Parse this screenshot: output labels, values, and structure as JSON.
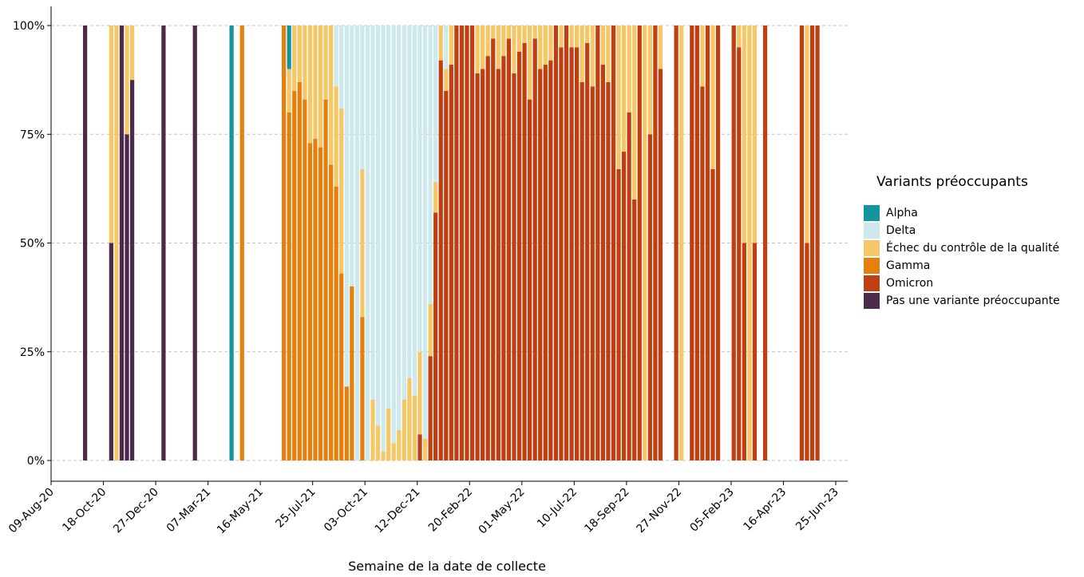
{
  "chart_data": {
    "type": "bar",
    "stacked": true,
    "xlabel": "Semaine de la date de collecte",
    "ylabel": "",
    "y_tick_labels": [
      "0%",
      "25%",
      "50%",
      "75%",
      "100%"
    ],
    "x_tick_labels": [
      "09-Aug-20",
      "18-Oct-20",
      "27-Dec-20",
      "07-Mar-21",
      "16-May-21",
      "25-Jul-21",
      "03-Oct-21",
      "12-Dec-21",
      "20-Feb-22",
      "01-May-22",
      "10-Jul-22",
      "18-Sep-22",
      "27-Nov-22",
      "05-Feb-23",
      "16-Apr-23",
      "25-Jun-23"
    ],
    "x_ticks": [
      "2020-08-09",
      "2020-10-18",
      "2020-12-27",
      "2021-03-07",
      "2021-05-16",
      "2021-07-25",
      "2021-10-03",
      "2021-12-12",
      "2022-02-20",
      "2022-05-01",
      "2022-07-10",
      "2022-09-18",
      "2022-11-27",
      "2023-02-05",
      "2023-04-16",
      "2023-06-25"
    ],
    "ylim": [
      0,
      1
    ],
    "grid": "horizontal-dashed",
    "legend": {
      "title": "Variants préoccupants",
      "position": "right",
      "entries": [
        {
          "name": "Alpha",
          "color": "#1395a0"
        },
        {
          "name": "Delta",
          "color": "#cde9ee"
        },
        {
          "name": "Échec du contrôle de la qualité",
          "color": "#f6c766"
        },
        {
          "name": "Gamma",
          "color": "#e57f0e"
        },
        {
          "name": "Omicron",
          "color": "#c03f12"
        },
        {
          "name": "Pas une variante préoccupante",
          "color": "#4b2a4a"
        }
      ]
    },
    "series_order": [
      "Pas une variante préoccupante",
      "Omicron",
      "Gamma",
      "Échec du contrôle de la qualité",
      "Delta",
      "Alpha"
    ],
    "weeks": [
      {
        "week": "2020-09-20",
        "values": {
          "Pas une variante préoccupante": 1
        }
      },
      {
        "week": "2020-10-25",
        "values": {
          "Pas une variante préoccupante": 0.5,
          "Échec du contrôle de la qualité": 0.5
        }
      },
      {
        "week": "2020-11-01",
        "values": {
          "Échec du contrôle de la qualité": 1
        }
      },
      {
        "week": "2020-11-08",
        "values": {
          "Pas une variante préoccupante": 1
        }
      },
      {
        "week": "2020-11-15",
        "values": {
          "Pas une variante préoccupante": 0.75,
          "Échec du contrôle de la qualité": 0.25
        }
      },
      {
        "week": "2020-11-22",
        "values": {
          "Pas une variante préoccupante": 0.875,
          "Échec du contrôle de la qualité": 0.125
        }
      },
      {
        "week": "2021-01-03",
        "values": {
          "Pas une variante préoccupante": 1
        }
      },
      {
        "week": "2021-02-14",
        "values": {
          "Pas une variante préoccupante": 1
        }
      },
      {
        "week": "2021-04-04",
        "values": {
          "Alpha": 1
        }
      },
      {
        "week": "2021-04-18",
        "values": {
          "Gamma": 1
        }
      },
      {
        "week": "2021-06-13",
        "values": {
          "Gamma": 1
        }
      },
      {
        "week": "2021-06-20",
        "values": {
          "Gamma": 0.8,
          "Échec du contrôle de la qualité": 0.1,
          "Alpha": 0.1
        }
      },
      {
        "week": "2021-06-27",
        "values": {
          "Gamma": 0.85,
          "Échec du contrôle de la qualité": 0.15
        }
      },
      {
        "week": "2021-07-04",
        "values": {
          "Gamma": 0.87,
          "Échec du contrôle de la qualité": 0.13
        }
      },
      {
        "week": "2021-07-11",
        "values": {
          "Gamma": 0.83,
          "Échec du contrôle de la qualité": 0.17
        }
      },
      {
        "week": "2021-07-18",
        "values": {
          "Gamma": 0.73,
          "Échec du contrôle de la qualité": 0.27
        }
      },
      {
        "week": "2021-07-25",
        "values": {
          "Gamma": 0.74,
          "Échec du contrôle de la qualité": 0.26
        }
      },
      {
        "week": "2021-08-01",
        "values": {
          "Gamma": 0.72,
          "Échec du contrôle de la qualité": 0.28
        }
      },
      {
        "week": "2021-08-08",
        "values": {
          "Gamma": 0.83,
          "Échec du contrôle de la qualité": 0.17
        }
      },
      {
        "week": "2021-08-15",
        "values": {
          "Gamma": 0.68,
          "Échec du contrôle de la qualité": 0.32
        }
      },
      {
        "week": "2021-08-22",
        "values": {
          "Gamma": 0.63,
          "Échec du contrôle de la qualité": 0.23,
          "Delta": 0.14
        }
      },
      {
        "week": "2021-08-29",
        "values": {
          "Gamma": 0.43,
          "Échec du contrôle de la qualité": 0.38,
          "Delta": 0.19
        }
      },
      {
        "week": "2021-09-05",
        "values": {
          "Gamma": 0.17,
          "Delta": 0.83
        }
      },
      {
        "week": "2021-09-12",
        "values": {
          "Gamma": 0.4,
          "Delta": 0.6
        }
      },
      {
        "week": "2021-09-19",
        "values": {
          "Delta": 1
        }
      },
      {
        "week": "2021-09-26",
        "values": {
          "Gamma": 0.33,
          "Échec du contrôle de la qualité": 0.34,
          "Delta": 0.33
        }
      },
      {
        "week": "2021-10-03",
        "values": {
          "Delta": 1
        }
      },
      {
        "week": "2021-10-10",
        "values": {
          "Échec du contrôle de la qualité": 0.14,
          "Delta": 0.86
        }
      },
      {
        "week": "2021-10-17",
        "values": {
          "Échec du contrôle de la qualité": 0.08,
          "Delta": 0.92
        }
      },
      {
        "week": "2021-10-24",
        "values": {
          "Échec du contrôle de la qualité": 0.02,
          "Delta": 0.98
        }
      },
      {
        "week": "2021-10-31",
        "values": {
          "Échec du contrôle de la qualité": 0.12,
          "Delta": 0.88
        }
      },
      {
        "week": "2021-11-07",
        "values": {
          "Échec du contrôle de la qualité": 0.04,
          "Delta": 0.96
        }
      },
      {
        "week": "2021-11-14",
        "values": {
          "Échec du contrôle de la qualité": 0.07,
          "Delta": 0.93
        }
      },
      {
        "week": "2021-11-21",
        "values": {
          "Échec du contrôle de la qualité": 0.14,
          "Delta": 0.86
        }
      },
      {
        "week": "2021-11-28",
        "values": {
          "Échec du contrôle de la qualité": 0.19,
          "Delta": 0.81
        }
      },
      {
        "week": "2021-12-05",
        "values": {
          "Échec du contrôle de la qualité": 0.15,
          "Delta": 0.85
        }
      },
      {
        "week": "2021-12-12",
        "values": {
          "Omicron": 0.06,
          "Échec du contrôle de la qualité": 0.19,
          "Delta": 0.75
        }
      },
      {
        "week": "2021-12-19",
        "values": {
          "Échec du contrôle de la qualité": 0.05,
          "Delta": 0.95
        }
      },
      {
        "week": "2021-12-26",
        "values": {
          "Omicron": 0.24,
          "Échec du contrôle de la qualité": 0.12,
          "Delta": 0.64
        }
      },
      {
        "week": "2022-01-02",
        "values": {
          "Omicron": 0.57,
          "Échec du contrôle de la qualité": 0.07,
          "Delta": 0.36
        }
      },
      {
        "week": "2022-01-09",
        "values": {
          "Omicron": 0.92,
          "Échec du contrôle de la qualité": 0.08
        }
      },
      {
        "week": "2022-01-16",
        "values": {
          "Omicron": 0.85,
          "Échec du contrôle de la qualité": 0.05,
          "Delta": 0.1
        }
      },
      {
        "week": "2022-01-23",
        "values": {
          "Omicron": 0.91,
          "Échec du contrôle de la qualité": 0.09
        }
      },
      {
        "week": "2022-01-30",
        "values": {
          "Omicron": 1
        }
      },
      {
        "week": "2022-02-06",
        "values": {
          "Omicron": 1
        }
      },
      {
        "week": "2022-02-13",
        "values": {
          "Omicron": 1
        }
      },
      {
        "week": "2022-02-20",
        "values": {
          "Omicron": 1
        }
      },
      {
        "week": "2022-02-27",
        "values": {
          "Omicron": 0.89,
          "Échec du contrôle de la qualité": 0.11
        }
      },
      {
        "week": "2022-03-06",
        "values": {
          "Omicron": 0.9,
          "Échec du contrôle de la qualité": 0.1
        }
      },
      {
        "week": "2022-03-13",
        "values": {
          "Omicron": 0.93,
          "Échec du contrôle de la qualité": 0.07
        }
      },
      {
        "week": "2022-03-20",
        "values": {
          "Omicron": 0.97,
          "Échec du contrôle de la qualité": 0.03
        }
      },
      {
        "week": "2022-03-27",
        "values": {
          "Omicron": 0.9,
          "Échec du contrôle de la qualité": 0.1
        }
      },
      {
        "week": "2022-04-03",
        "values": {
          "Omicron": 0.93,
          "Échec du contrôle de la qualité": 0.07
        }
      },
      {
        "week": "2022-04-10",
        "values": {
          "Omicron": 0.97,
          "Échec du contrôle de la qualité": 0.03
        }
      },
      {
        "week": "2022-04-17",
        "values": {
          "Omicron": 0.89,
          "Échec du contrôle de la qualité": 0.11
        }
      },
      {
        "week": "2022-04-24",
        "values": {
          "Omicron": 0.94,
          "Échec du contrôle de la qualité": 0.06
        }
      },
      {
        "week": "2022-05-01",
        "values": {
          "Omicron": 0.96,
          "Échec du contrôle de la qualité": 0.04
        }
      },
      {
        "week": "2022-05-08",
        "values": {
          "Omicron": 0.83,
          "Échec du contrôle de la qualité": 0.17
        }
      },
      {
        "week": "2022-05-15",
        "values": {
          "Omicron": 0.97,
          "Échec du contrôle de la qualité": 0.03
        }
      },
      {
        "week": "2022-05-22",
        "values": {
          "Omicron": 0.9,
          "Échec du contrôle de la qualité": 0.1
        }
      },
      {
        "week": "2022-05-29",
        "values": {
          "Omicron": 0.91,
          "Échec du contrôle de la qualité": 0.09
        }
      },
      {
        "week": "2022-06-05",
        "values": {
          "Omicron": 0.92,
          "Échec du contrôle de la qualité": 0.08
        }
      },
      {
        "week": "2022-06-12",
        "values": {
          "Omicron": 1
        }
      },
      {
        "week": "2022-06-19",
        "values": {
          "Omicron": 0.95,
          "Échec du contrôle de la qualité": 0.05
        }
      },
      {
        "week": "2022-06-26",
        "values": {
          "Omicron": 1
        }
      },
      {
        "week": "2022-07-03",
        "values": {
          "Omicron": 0.95,
          "Échec du contrôle de la qualité": 0.05
        }
      },
      {
        "week": "2022-07-10",
        "values": {
          "Omicron": 0.95,
          "Échec du contrôle de la qualité": 0.05
        }
      },
      {
        "week": "2022-07-17",
        "values": {
          "Omicron": 0.87,
          "Échec du contrôle de la qualité": 0.13
        }
      },
      {
        "week": "2022-07-24",
        "values": {
          "Omicron": 0.96,
          "Échec du contrôle de la qualité": 0.04
        }
      },
      {
        "week": "2022-07-31",
        "values": {
          "Omicron": 0.86,
          "Échec du contrôle de la qualité": 0.14
        }
      },
      {
        "week": "2022-08-07",
        "values": {
          "Omicron": 1
        }
      },
      {
        "week": "2022-08-14",
        "values": {
          "Omicron": 0.91,
          "Échec du contrôle de la qualité": 0.09
        }
      },
      {
        "week": "2022-08-21",
        "values": {
          "Omicron": 0.87,
          "Échec du contrôle de la qualité": 0.13
        }
      },
      {
        "week": "2022-08-28",
        "values": {
          "Omicron": 1
        }
      },
      {
        "week": "2022-09-04",
        "values": {
          "Omicron": 0.67,
          "Échec du contrôle de la qualité": 0.33
        }
      },
      {
        "week": "2022-09-11",
        "values": {
          "Omicron": 0.71,
          "Échec du contrôle de la qualité": 0.29
        }
      },
      {
        "week": "2022-09-18",
        "values": {
          "Omicron": 0.8,
          "Échec du contrôle de la qualité": 0.2
        }
      },
      {
        "week": "2022-09-25",
        "values": {
          "Omicron": 0.6,
          "Échec du contrôle de la qualité": 0.4
        }
      },
      {
        "week": "2022-10-02",
        "values": {
          "Omicron": 1
        }
      },
      {
        "week": "2022-10-09",
        "values": {
          "Échec du contrôle de la qualité": 1
        }
      },
      {
        "week": "2022-10-16",
        "values": {
          "Omicron": 0.75,
          "Échec du contrôle de la qualité": 0.25
        }
      },
      {
        "week": "2022-10-23",
        "values": {
          "Omicron": 1
        }
      },
      {
        "week": "2022-10-30",
        "values": {
          "Omicron": 0.9,
          "Échec du contrôle de la qualité": 0.1
        }
      },
      {
        "week": "2022-11-20",
        "values": {
          "Omicron": 1
        }
      },
      {
        "week": "2022-11-27",
        "values": {
          "Échec du contrôle de la qualité": 1
        }
      },
      {
        "week": "2022-12-11",
        "values": {
          "Omicron": 1
        }
      },
      {
        "week": "2022-12-18",
        "values": {
          "Omicron": 1
        }
      },
      {
        "week": "2022-12-25",
        "values": {
          "Omicron": 0.86,
          "Échec du contrôle de la qualité": 0.14
        }
      },
      {
        "week": "2023-01-01",
        "values": {
          "Omicron": 1
        }
      },
      {
        "week": "2023-01-08",
        "values": {
          "Omicron": 0.67,
          "Échec du contrôle de la qualité": 0.33
        }
      },
      {
        "week": "2023-01-15",
        "values": {
          "Omicron": 1
        }
      },
      {
        "week": "2023-02-05",
        "values": {
          "Omicron": 1
        }
      },
      {
        "week": "2023-02-12",
        "values": {
          "Omicron": 0.95,
          "Échec du contrôle de la qualité": 0.05
        }
      },
      {
        "week": "2023-02-19",
        "values": {
          "Omicron": 0.5,
          "Échec du contrôle de la qualité": 0.5
        }
      },
      {
        "week": "2023-02-26",
        "values": {
          "Échec du contrôle de la qualité": 1
        }
      },
      {
        "week": "2023-03-05",
        "values": {
          "Omicron": 0.5,
          "Échec du contrôle de la qualité": 0.5
        }
      },
      {
        "week": "2023-03-19",
        "values": {
          "Omicron": 1
        }
      },
      {
        "week": "2023-05-07",
        "values": {
          "Omicron": 1
        }
      },
      {
        "week": "2023-05-14",
        "values": {
          "Omicron": 0.5,
          "Échec du contrôle de la qualité": 0.5
        }
      },
      {
        "week": "2023-05-21",
        "values": {
          "Omicron": 1
        }
      },
      {
        "week": "2023-05-28",
        "values": {
          "Omicron": 1
        }
      }
    ]
  }
}
